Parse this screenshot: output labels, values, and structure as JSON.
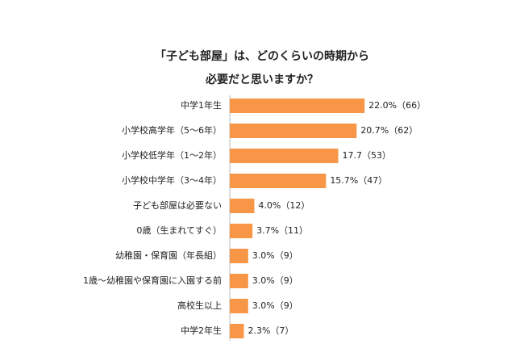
{
  "chart_data": {
    "type": "bar",
    "orientation": "horizontal",
    "title": [
      "「子ども部屋」は、どのくらいの時期から",
      "必要だと思いますか？"
    ],
    "categories": [
      "中学1年生",
      "小学校高学年（5～6年）",
      "小学校低学年（1～2年）",
      "小学校中学年（3～4年）",
      "子ども部屋は必要ない",
      "0歳（生まれてすぐ）",
      "幼稚園・保育園（年長組）",
      "1歳～幼稚園や保育園に入園する前",
      "高校生以上",
      "中学2年生"
    ],
    "values": [
      22.0,
      20.7,
      17.7,
      15.7,
      4.0,
      3.7,
      3.0,
      3.0,
      3.0,
      2.3
    ],
    "value_labels": [
      "22.0%（66）",
      "20.7%（62）",
      "17.7（53）",
      "15.7%（47）",
      "4.0%（12）",
      "3.7%（11）",
      "3.0%（9）",
      "3.0%（9）",
      "3.0%（9）",
      "2.3%（7）"
    ],
    "color": "#f79646"
  }
}
